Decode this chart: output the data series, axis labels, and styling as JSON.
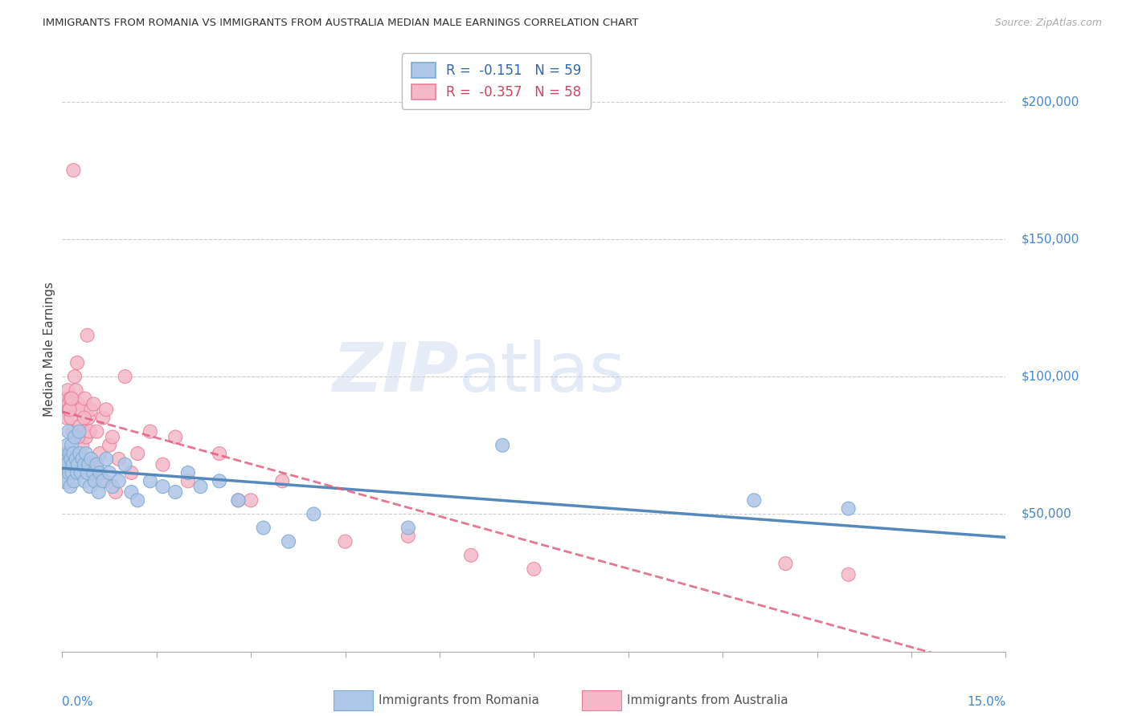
{
  "title": "IMMIGRANTS FROM ROMANIA VS IMMIGRANTS FROM AUSTRALIA MEDIAN MALE EARNINGS CORRELATION CHART",
  "source": "Source: ZipAtlas.com",
  "ylabel": "Median Male Earnings",
  "xmin": 0.0,
  "xmax": 15.0,
  "ymin": 0,
  "ymax": 220000,
  "yticks": [
    50000,
    100000,
    150000,
    200000
  ],
  "ytick_labels": [
    "$50,000",
    "$100,000",
    "$150,000",
    "$200,000"
  ],
  "grid_color": "#cccccc",
  "background_color": "#ffffff",
  "romania_color": "#aec6e8",
  "australia_color": "#f4b8c8",
  "romania_edge_color": "#7aaad0",
  "australia_edge_color": "#e8809a",
  "romania_line_color": "#5588bb",
  "australia_line_color": "#e06080",
  "romania_R": -0.151,
  "romania_N": 59,
  "australia_R": -0.357,
  "australia_N": 58,
  "watermark_text": "ZIPatlas",
  "romania_x": [
    0.02,
    0.04,
    0.06,
    0.07,
    0.08,
    0.09,
    0.1,
    0.1,
    0.11,
    0.12,
    0.13,
    0.14,
    0.15,
    0.16,
    0.17,
    0.18,
    0.19,
    0.2,
    0.22,
    0.24,
    0.25,
    0.27,
    0.28,
    0.3,
    0.32,
    0.35,
    0.36,
    0.38,
    0.4,
    0.42,
    0.44,
    0.46,
    0.5,
    0.52,
    0.55,
    0.58,
    0.6,
    0.65,
    0.7,
    0.75,
    0.8,
    0.9,
    1.0,
    1.1,
    1.2,
    1.4,
    1.6,
    1.8,
    2.0,
    2.2,
    2.5,
    2.8,
    3.2,
    3.6,
    4.0,
    5.5,
    7.0,
    11.0,
    12.5
  ],
  "romania_y": [
    65000,
    68000,
    62000,
    72000,
    75000,
    70000,
    68000,
    80000,
    65000,
    72000,
    60000,
    70000,
    75000,
    65000,
    68000,
    72000,
    62000,
    78000,
    70000,
    65000,
    68000,
    80000,
    72000,
    65000,
    70000,
    68000,
    62000,
    72000,
    65000,
    68000,
    60000,
    70000,
    65000,
    62000,
    68000,
    58000,
    65000,
    62000,
    70000,
    65000,
    60000,
    62000,
    68000,
    58000,
    55000,
    62000,
    60000,
    58000,
    65000,
    60000,
    62000,
    55000,
    45000,
    40000,
    50000,
    45000,
    75000,
    55000,
    52000
  ],
  "romania_sizes": [
    600,
    200,
    200,
    150,
    150,
    150,
    200,
    150,
    150,
    150,
    150,
    150,
    150,
    150,
    150,
    150,
    150,
    150,
    150,
    150,
    150,
    150,
    150,
    150,
    150,
    150,
    150,
    150,
    150,
    150,
    150,
    150,
    150,
    150,
    150,
    150,
    150,
    150,
    150,
    150,
    150,
    150,
    150,
    150,
    150,
    150,
    150,
    150,
    150,
    150,
    150,
    150,
    150,
    150,
    150,
    150,
    150,
    150,
    150
  ],
  "australia_x": [
    0.03,
    0.05,
    0.07,
    0.09,
    0.1,
    0.11,
    0.13,
    0.14,
    0.16,
    0.17,
    0.18,
    0.2,
    0.22,
    0.24,
    0.26,
    0.28,
    0.3,
    0.32,
    0.34,
    0.36,
    0.38,
    0.4,
    0.42,
    0.44,
    0.46,
    0.5,
    0.55,
    0.6,
    0.65,
    0.7,
    0.75,
    0.8,
    0.9,
    1.0,
    1.2,
    1.4,
    1.6,
    1.8,
    2.0,
    2.5,
    3.0,
    3.5,
    4.5,
    5.5,
    6.5,
    7.5,
    11.5,
    12.5,
    0.12,
    0.15,
    0.25,
    0.35,
    0.48,
    0.58,
    0.68,
    0.85,
    1.1,
    2.8
  ],
  "australia_y": [
    88000,
    92000,
    85000,
    95000,
    90000,
    88000,
    92000,
    85000,
    90000,
    80000,
    175000,
    100000,
    95000,
    105000,
    90000,
    82000,
    88000,
    75000,
    80000,
    92000,
    78000,
    115000,
    85000,
    80000,
    88000,
    90000,
    80000,
    72000,
    85000,
    88000,
    75000,
    78000,
    70000,
    100000,
    72000,
    80000,
    68000,
    78000,
    62000,
    72000,
    55000,
    62000,
    40000,
    42000,
    35000,
    30000,
    32000,
    28000,
    88000,
    92000,
    78000,
    85000,
    68000,
    65000,
    62000,
    58000,
    65000,
    55000
  ],
  "australia_sizes": [
    150,
    150,
    150,
    150,
    150,
    150,
    150,
    150,
    150,
    150,
    150,
    150,
    150,
    150,
    150,
    150,
    150,
    150,
    150,
    150,
    150,
    150,
    150,
    150,
    150,
    150,
    150,
    150,
    150,
    150,
    150,
    150,
    150,
    150,
    150,
    150,
    150,
    150,
    150,
    150,
    150,
    150,
    150,
    150,
    150,
    150,
    150,
    150,
    150,
    150,
    150,
    150,
    150,
    150,
    150,
    150,
    150,
    150
  ]
}
